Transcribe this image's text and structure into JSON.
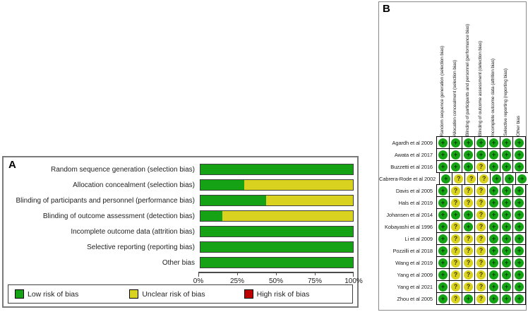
{
  "figure": {
    "panel_a_label": "A",
    "panel_b_label": "B"
  },
  "colors": {
    "low": "#15A315",
    "unclear": "#D9D320",
    "high": "#C00000"
  },
  "judgement_colors": {
    "+": "#15A315",
    "?": "#D9D320",
    "-": "#C00000"
  },
  "judgement_text_colors": {
    "+": "#003800",
    "?": "#3F3A00",
    "-": "#3A0000"
  },
  "chart_data": [
    {
      "type": "bar",
      "subtype": "stacked-horizontal",
      "panel": "A",
      "title": "",
      "xlabel": "",
      "ylabel": "",
      "xlim": [
        0,
        100
      ],
      "x_ticks": [
        "0%",
        "25%",
        "50%",
        "75%",
        "100%"
      ],
      "grid": false,
      "legend_position": "bottom",
      "categories": [
        "Random sequence generation (selection bias)",
        "Allocation concealment (selection bias)",
        "Blinding of participants and personnel (performance bias)",
        "Blinding of outcome assessment (detection bias)",
        "Incomplete outcome data (attrition bias)",
        "Selective reporting (reporting bias)",
        "Other bias"
      ],
      "series": [
        {
          "name": "Low risk of bias",
          "color": "#15A315",
          "values": [
            100,
            28.6,
            42.9,
            14.3,
            100,
            100,
            100
          ]
        },
        {
          "name": "Unclear risk of bias",
          "color": "#D9D320",
          "values": [
            0,
            71.4,
            57.1,
            85.7,
            0,
            0,
            0
          ]
        },
        {
          "name": "High risk of bias",
          "color": "#C00000",
          "values": [
            0,
            0,
            0,
            0,
            0,
            0,
            0
          ]
        }
      ]
    },
    {
      "type": "table",
      "panel": "B",
      "columns": [
        "Random sequence generation (selection bias)",
        "Allocation concealment (selection bias)",
        "Blinding of participants and personnel (performance bias)",
        "Blinding of outcome assessment (detection bias)",
        "Incomplete outcome data (attrition bias)",
        "Selective reporting (reporting bias)",
        "Other bias"
      ],
      "rows": [
        {
          "study": "Agardh et al 2009",
          "judgements": [
            "+",
            "+",
            "+",
            "+",
            "+",
            "+",
            "+"
          ]
        },
        {
          "study": "Awata et al 2017",
          "judgements": [
            "+",
            "+",
            "+",
            "+",
            "+",
            "+",
            "+"
          ]
        },
        {
          "study": "Buzzetti et al 2016",
          "judgements": [
            "+",
            "+",
            "+",
            "?",
            "+",
            "+",
            "+"
          ]
        },
        {
          "study": "Cabrera-Rode et al 2002",
          "judgements": [
            "+",
            "?",
            "?",
            "?",
            "+",
            "+",
            "+"
          ]
        },
        {
          "study": "Davis et al 2005",
          "judgements": [
            "+",
            "?",
            "?",
            "?",
            "+",
            "+",
            "+"
          ]
        },
        {
          "study": "Hals et al 2019",
          "judgements": [
            "+",
            "?",
            "?",
            "?",
            "+",
            "+",
            "+"
          ]
        },
        {
          "study": "Johansen et al 2014",
          "judgements": [
            "+",
            "+",
            "+",
            "?",
            "+",
            "+",
            "+"
          ]
        },
        {
          "study": "Kobayashi et al 1996",
          "judgements": [
            "+",
            "?",
            "+",
            "?",
            "+",
            "+",
            "+"
          ]
        },
        {
          "study": "Li et al 2009",
          "judgements": [
            "+",
            "?",
            "?",
            "?",
            "+",
            "+",
            "+"
          ]
        },
        {
          "study": "Pozzilli et al 2018",
          "judgements": [
            "+",
            "?",
            "?",
            "?",
            "+",
            "+",
            "+"
          ]
        },
        {
          "study": "Wang et al 2019",
          "judgements": [
            "+",
            "?",
            "?",
            "?",
            "+",
            "+",
            "+"
          ]
        },
        {
          "study": "Yang et al 2009",
          "judgements": [
            "+",
            "?",
            "?",
            "?",
            "+",
            "+",
            "+"
          ]
        },
        {
          "study": "Yang et al 2021",
          "judgements": [
            "+",
            "?",
            "?",
            "?",
            "+",
            "+",
            "+"
          ]
        },
        {
          "study": "Zhou et al 2005",
          "judgements": [
            "+",
            "?",
            "+",
            "?",
            "+",
            "+",
            "+"
          ]
        }
      ]
    }
  ]
}
